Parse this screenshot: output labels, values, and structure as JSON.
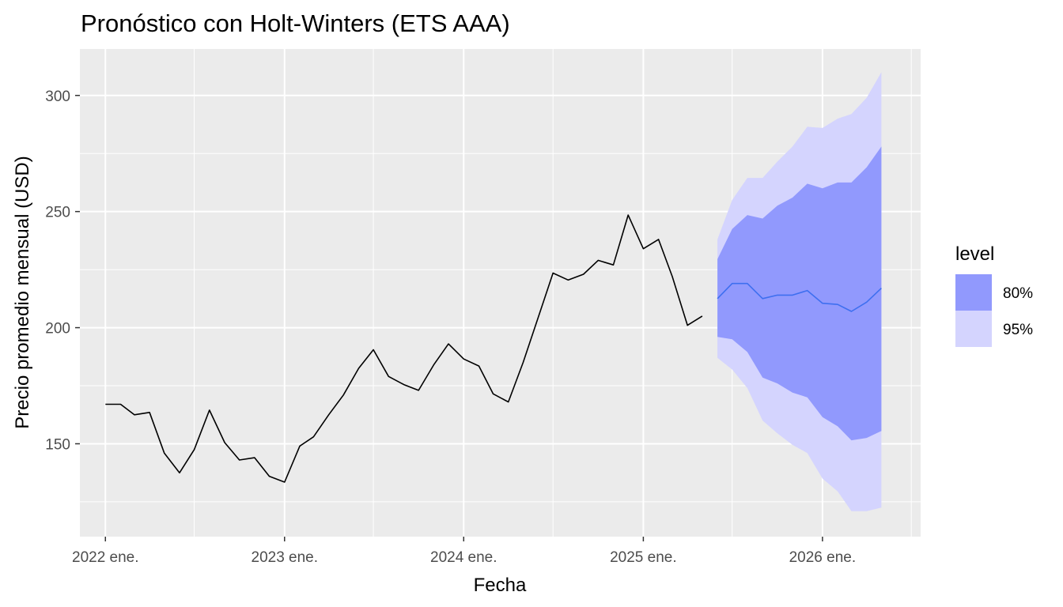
{
  "chart_data": {
    "type": "line",
    "title": "Pronóstico con Holt-Winters (ETS AAA)",
    "xlabel": "Fecha",
    "ylabel": "Precio promedio mensual (USD)",
    "x_ticks": [
      "2022 ene.",
      "2023 ene.",
      "2024 ene.",
      "2025 ene.",
      "2026 ene."
    ],
    "y_ticks": [
      150,
      200,
      250,
      300
    ],
    "ylim": [
      110,
      320
    ],
    "grid": true,
    "legend": {
      "title": "level",
      "position": "right",
      "items": [
        {
          "label": "80%",
          "color": "#9199fd"
        },
        {
          "label": "95%",
          "color": "#d4d4fe"
        }
      ]
    },
    "colors": {
      "panel": "#ebebeb",
      "grid": "#ffffff",
      "history": "#000000",
      "forecast": "#3e6ff0",
      "band80": "#9199fd",
      "band95": "#d4d4fe"
    },
    "series": [
      {
        "role": "history",
        "x": [
          "2022-01",
          "2022-02",
          "2022-03",
          "2022-04",
          "2022-05",
          "2022-06",
          "2022-07",
          "2022-08",
          "2022-09",
          "2022-10",
          "2022-11",
          "2022-12",
          "2023-01",
          "2023-02",
          "2023-03",
          "2023-04",
          "2023-05",
          "2023-06",
          "2023-07",
          "2023-08",
          "2023-09",
          "2023-10",
          "2023-11",
          "2023-12",
          "2024-01",
          "2024-02",
          "2024-03",
          "2024-04",
          "2024-05",
          "2024-06",
          "2024-07",
          "2024-08",
          "2024-09",
          "2024-10",
          "2024-11",
          "2024-12",
          "2025-01",
          "2025-02",
          "2025-03",
          "2025-04",
          "2025-05"
        ],
        "values": [
          167,
          167,
          162.5,
          163.5,
          146,
          137.5,
          147.5,
          164.5,
          150.5,
          143,
          144,
          136,
          133.5,
          149,
          153,
          162.5,
          171,
          182.5,
          190.5,
          179,
          175.5,
          173,
          184,
          193,
          186.5,
          183.5,
          171.5,
          168,
          185,
          204.5,
          223.5,
          220.5,
          223,
          229,
          227,
          248.5,
          234,
          238,
          222,
          201,
          205
        ]
      },
      {
        "role": "forecast",
        "x": [
          "2025-06",
          "2025-07",
          "2025-08",
          "2025-09",
          "2025-10",
          "2025-11",
          "2025-12",
          "2026-01",
          "2026-02",
          "2026-03",
          "2026-04",
          "2026-05",
          "2026-06"
        ],
        "mean": [
          212.5,
          219,
          219,
          212.5,
          214,
          214,
          216,
          210.5,
          210,
          207,
          211,
          217,
          null
        ],
        "lo80": [
          196,
          195,
          189.5,
          178.5,
          176,
          172,
          170,
          161.5,
          157.5,
          151.5,
          152.5,
          155.5,
          null
        ],
        "hi80": [
          229.5,
          242.5,
          248.5,
          247,
          252.5,
          256,
          262,
          260,
          262.5,
          262.5,
          269,
          278,
          null
        ],
        "lo95": [
          187,
          182,
          174,
          160,
          154.5,
          149.5,
          146,
          135,
          129.5,
          121,
          121,
          122.5,
          null
        ],
        "hi95": [
          238,
          255,
          264.5,
          264.5,
          271.5,
          278,
          286.5,
          286,
          290,
          292,
          299,
          310,
          null
        ]
      }
    ]
  }
}
